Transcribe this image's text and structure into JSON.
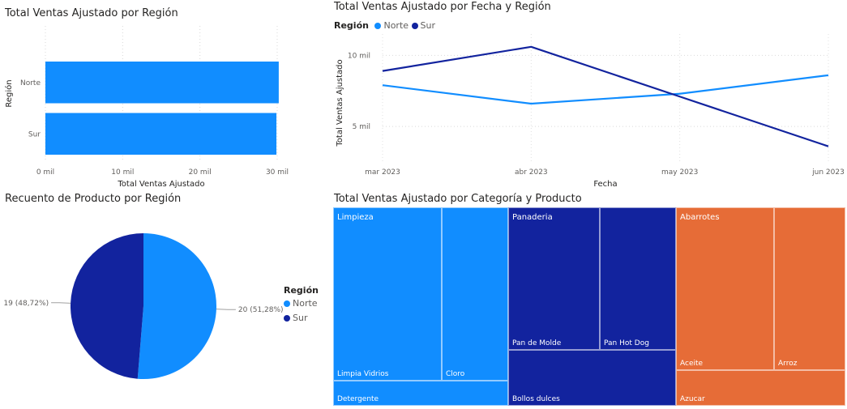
{
  "chart_data": [
    {
      "type": "bar",
      "orientation": "horizontal",
      "title": "Total Ventas Ajustado por Región",
      "ylabel": "Región",
      "xlabel": "Total Ventas Ajustado",
      "categories": [
        "Norte",
        "Sur"
      ],
      "values": [
        30200,
        29900
      ],
      "xlim": [
        0,
        30000
      ],
      "xticks": [
        0,
        10000,
        20000,
        30000
      ],
      "xtick_labels": [
        "0 mil",
        "10 mil",
        "20 mil",
        "30 mil"
      ],
      "color": "#118DFF",
      "grid": true
    },
    {
      "type": "line",
      "title": "Total Ventas Ajustado por Fecha y Región",
      "legend_title": "Región",
      "legend_position": "top-left",
      "xlabel": "Fecha",
      "ylabel": "Total Ventas Ajustado",
      "categories": [
        "mar 2023",
        "abr 2023",
        "may 2023",
        "jun 2023"
      ],
      "series": [
        {
          "name": "Norte",
          "color": "#118DFF",
          "values": [
            7900,
            6600,
            7300,
            8600
          ]
        },
        {
          "name": "Sur",
          "color": "#12239E",
          "values": [
            8900,
            10600,
            7100,
            3600
          ]
        }
      ],
      "ylim": [
        2500,
        11500
      ],
      "yticks": [
        5000,
        10000
      ],
      "ytick_labels": [
        "5 mil",
        "10 mil"
      ],
      "grid": true
    },
    {
      "type": "pie",
      "title": "Recuento de Producto por Región",
      "legend_title": "Región",
      "legend_position": "right",
      "slices": [
        {
          "name": "Norte",
          "value": 20,
          "label": "20 (51,28%)",
          "color": "#118DFF"
        },
        {
          "name": "Sur",
          "value": 19,
          "label": "19 (48,72%)",
          "color": "#12239E"
        }
      ]
    },
    {
      "type": "treemap",
      "title": "Total Ventas Ajustado por Categoría y Producto",
      "groups": [
        {
          "name": "Limpieza",
          "color": "#118DFF",
          "items": [
            {
              "name": "Limpia Vidrios"
            },
            {
              "name": "Cloro"
            },
            {
              "name": "Detergente"
            }
          ]
        },
        {
          "name": "Panaderia",
          "color": "#12239E",
          "items": [
            {
              "name": "Pan de Molde"
            },
            {
              "name": "Pan Hot Dog"
            },
            {
              "name": "Bollos dulces"
            }
          ]
        },
        {
          "name": "Abarrotes",
          "color": "#E66C37",
          "items": [
            {
              "name": "Aceite"
            },
            {
              "name": "Arroz"
            },
            {
              "name": "Azucar"
            }
          ]
        }
      ]
    }
  ]
}
